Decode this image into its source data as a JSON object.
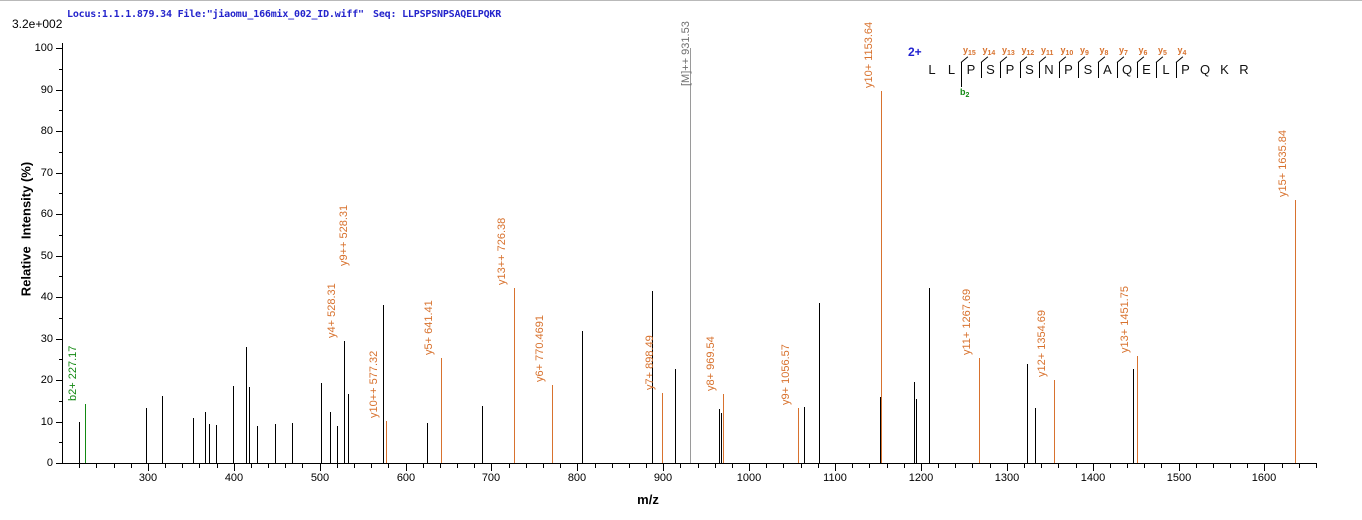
{
  "header": {
    "locus_text": "Locus:1.1.1.879.34 File:\"jiaomu_166mix_002_ID.wiff\"",
    "seq_text": "Seq: LLPSPSNPSAQELPQKR",
    "intensity_scale": "3.2e+002"
  },
  "axes": {
    "x_label": "m/z",
    "y_label": "Relative  Intensity (%)",
    "x_major_ticks": [
      300,
      400,
      500,
      600,
      700,
      800,
      900,
      1000,
      1100,
      1200,
      1300,
      1400,
      1500,
      1600
    ],
    "x_minor_step": 20,
    "y_major_ticks": [
      0,
      10,
      20,
      30,
      40,
      50,
      60,
      70,
      80,
      90,
      100
    ],
    "y_minor_step": 5
  },
  "colors": {
    "peak": "#000000",
    "y_ion": "#d8722e",
    "b_ion": "#128912",
    "precursor_line": "#9a9a9a",
    "precursor_text": "#6f6f6f",
    "header_blue": "#2424cc",
    "charge_blue": "#2020d0"
  },
  "chart_data": {
    "type": "bar",
    "title": "MS/MS fragment ion spectrum",
    "xlabel": "m/z",
    "ylabel": "Relative Intensity (%)",
    "xlim": [
      200,
      1660
    ],
    "ylim": [
      0,
      100
    ],
    "grid": false,
    "peaks": [
      {
        "mz": 219.8,
        "pct": 9.8,
        "color": "black"
      },
      {
        "mz": 227.17,
        "pct": 14.3,
        "color": "green",
        "label": "b2+ 227.17",
        "label_color": "green"
      },
      {
        "mz": 297.5,
        "pct": 13.2,
        "color": "black"
      },
      {
        "mz": 316.5,
        "pct": 16.1,
        "color": "black"
      },
      {
        "mz": 353.0,
        "pct": 10.9,
        "color": "black"
      },
      {
        "mz": 367.0,
        "pct": 12.2,
        "color": "black"
      },
      {
        "mz": 371.0,
        "pct": 9.3,
        "color": "black"
      },
      {
        "mz": 379.0,
        "pct": 9.2,
        "color": "black"
      },
      {
        "mz": 399.0,
        "pct": 18.5,
        "color": "black"
      },
      {
        "mz": 414.0,
        "pct": 28.0,
        "color": "black"
      },
      {
        "mz": 417.5,
        "pct": 18.3,
        "color": "black"
      },
      {
        "mz": 427.0,
        "pct": 9.0,
        "color": "black"
      },
      {
        "mz": 447.5,
        "pct": 9.5,
        "color": "black"
      },
      {
        "mz": 467.7,
        "pct": 9.6,
        "color": "black"
      },
      {
        "mz": 502.0,
        "pct": 19.2,
        "color": "black"
      },
      {
        "mz": 512.5,
        "pct": 12.3,
        "color": "black"
      },
      {
        "mz": 520.5,
        "pct": 9.0,
        "color": "black"
      },
      {
        "mz": 528.31,
        "pct": 29.4,
        "color": "black",
        "label": "y4+ 528.31",
        "label_color": "orange",
        "label2": "y9++ 528.31",
        "label2_color": "orange"
      },
      {
        "mz": 532.9,
        "pct": 16.6,
        "color": "black"
      },
      {
        "mz": 573.6,
        "pct": 38.0,
        "color": "black"
      },
      {
        "mz": 577.32,
        "pct": 10.2,
        "color": "orange",
        "label": "y10++ 577.32",
        "label_color": "orange"
      },
      {
        "mz": 624.6,
        "pct": 9.7,
        "color": "black"
      },
      {
        "mz": 641.41,
        "pct": 25.3,
        "color": "orange",
        "label": "y5+ 641.41",
        "label_color": "orange"
      },
      {
        "mz": 688.5,
        "pct": 13.7,
        "color": "black"
      },
      {
        "mz": 726.38,
        "pct": 42.2,
        "color": "orange",
        "label": "y13++ 726.38",
        "label_color": "orange"
      },
      {
        "mz": 770.4691,
        "pct": 18.8,
        "color": "orange",
        "label": "y6+ 770.4691",
        "label_color": "orange"
      },
      {
        "mz": 805.0,
        "pct": 31.8,
        "color": "black"
      },
      {
        "mz": 887.5,
        "pct": 41.4,
        "color": "black"
      },
      {
        "mz": 898.49,
        "pct": 16.9,
        "color": "orange",
        "label": "y7+ 898.49",
        "label_color": "orange"
      },
      {
        "mz": 914.0,
        "pct": 22.6,
        "color": "black"
      },
      {
        "mz": 931.53,
        "pct": 100.0,
        "color": "gray",
        "label": "[M]++ 931.53",
        "label_color": "gray",
        "label_dx": 8,
        "label_bottom": 85
      },
      {
        "mz": 964.8,
        "pct": 13.0,
        "color": "black"
      },
      {
        "mz": 966.8,
        "pct": 12.0,
        "color": "black"
      },
      {
        "mz": 969.54,
        "pct": 16.6,
        "color": "orange",
        "label": "y8+ 969.54",
        "label_color": "orange"
      },
      {
        "mz": 1056.57,
        "pct": 13.3,
        "color": "orange",
        "label": "y9+ 1056.57",
        "label_color": "orange"
      },
      {
        "mz": 1063.5,
        "pct": 13.6,
        "color": "black"
      },
      {
        "mz": 1081.0,
        "pct": 38.5,
        "color": "black"
      },
      {
        "mz": 1151.8,
        "pct": 16.0,
        "color": "black"
      },
      {
        "mz": 1153.64,
        "pct": 89.6,
        "color": "orange",
        "label": "y10+ 1153.64",
        "label_color": "orange"
      },
      {
        "mz": 1192.0,
        "pct": 19.6,
        "color": "black"
      },
      {
        "mz": 1194.5,
        "pct": 15.4,
        "color": "black"
      },
      {
        "mz": 1209.5,
        "pct": 42.2,
        "color": "black"
      },
      {
        "mz": 1267.69,
        "pct": 25.4,
        "color": "orange",
        "label": "y11+ 1267.69",
        "label_color": "orange"
      },
      {
        "mz": 1323.3,
        "pct": 23.9,
        "color": "black"
      },
      {
        "mz": 1332.3,
        "pct": 13.3,
        "color": "black"
      },
      {
        "mz": 1354.69,
        "pct": 19.9,
        "color": "orange",
        "label": "y12+ 1354.69",
        "label_color": "orange"
      },
      {
        "mz": 1447.4,
        "pct": 22.7,
        "color": "black"
      },
      {
        "mz": 1451.75,
        "pct": 25.8,
        "color": "orange",
        "label": "y13+ 1451.75",
        "label_color": "orange"
      },
      {
        "mz": 1635.84,
        "pct": 63.4,
        "color": "orange",
        "label": "y15+ 1635.84",
        "label_color": "orange"
      }
    ]
  },
  "peptide": {
    "charge": "2+",
    "residues": [
      {
        "aa": "L"
      },
      {
        "aa": "L"
      },
      {
        "aa": "P",
        "y": "y15",
        "b": "b2"
      },
      {
        "aa": "S",
        "y": "y14"
      },
      {
        "aa": "P",
        "y": "y13"
      },
      {
        "aa": "S",
        "y": "y12"
      },
      {
        "aa": "N",
        "y": "y11"
      },
      {
        "aa": "P",
        "y": "y10"
      },
      {
        "aa": "S",
        "y": "y9"
      },
      {
        "aa": "A",
        "y": "y8"
      },
      {
        "aa": "Q",
        "y": "y7"
      },
      {
        "aa": "E",
        "y": "y6"
      },
      {
        "aa": "L",
        "y": "y5"
      },
      {
        "aa": "P",
        "y": "y4"
      },
      {
        "aa": "Q"
      },
      {
        "aa": "K"
      },
      {
        "aa": "R"
      }
    ]
  }
}
